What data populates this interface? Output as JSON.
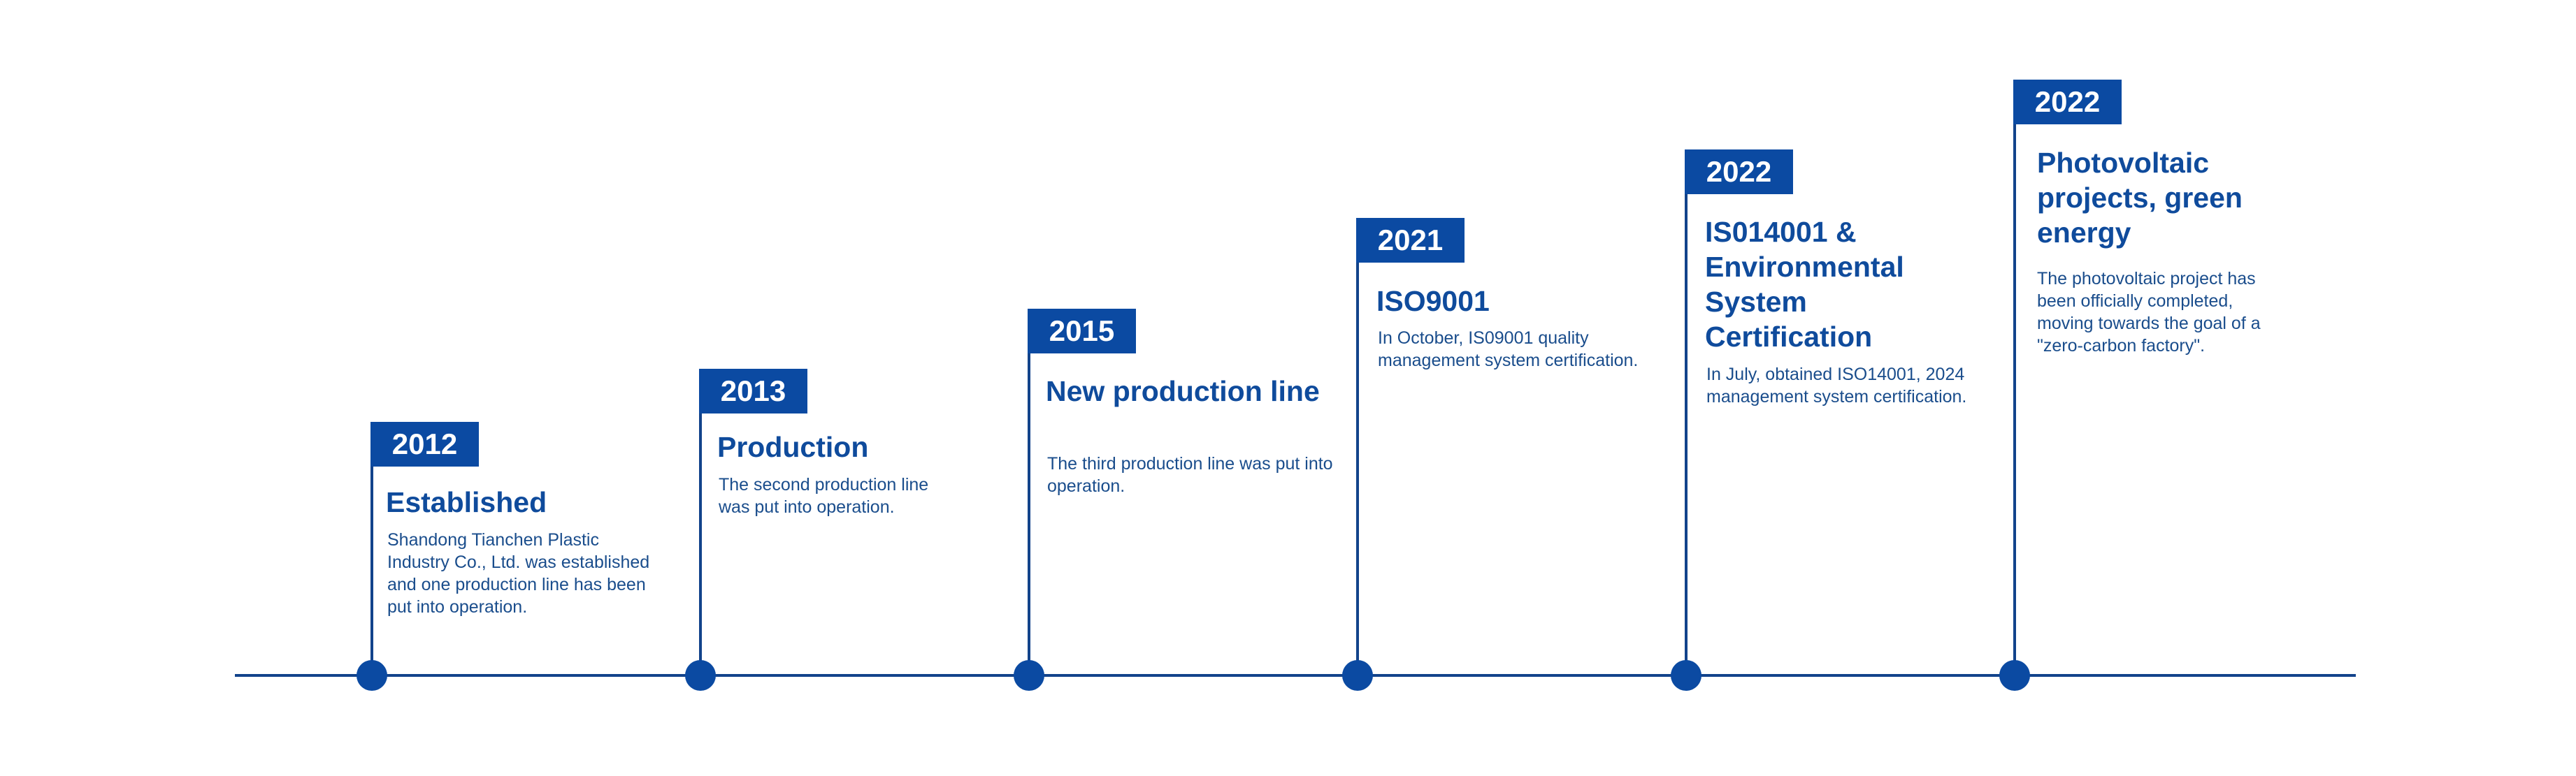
{
  "milestones": [
    {
      "year": "2012",
      "title": "Established",
      "description": "Shandong Tianchen Plastic Industry Co., Ltd. was established and one production line has been put into operation."
    },
    {
      "year": "2013",
      "title": "Production",
      "description": "The second production line was put into operation."
    },
    {
      "year": "2015",
      "title": "New production line",
      "description": "The third production line was put into operation."
    },
    {
      "year": "2021",
      "title": "ISO9001",
      "description": "In October, IS09001 quality management system certification."
    },
    {
      "year": "2022",
      "title": "IS014001 & Environmental System Certification",
      "description": "In July, obtained ISO14001, 2024 management system certification."
    },
    {
      "year": "2022",
      "title": "Photovoltaic projects, green energy",
      "description": "The photovoltaic project has been officially completed, moving towards the goal of a \"zero-carbon factory\"."
    }
  ],
  "colors": {
    "primary": "#0b4aa2",
    "line": "#12438b",
    "text": "#0f4b9c",
    "background": "#ffffff"
  }
}
